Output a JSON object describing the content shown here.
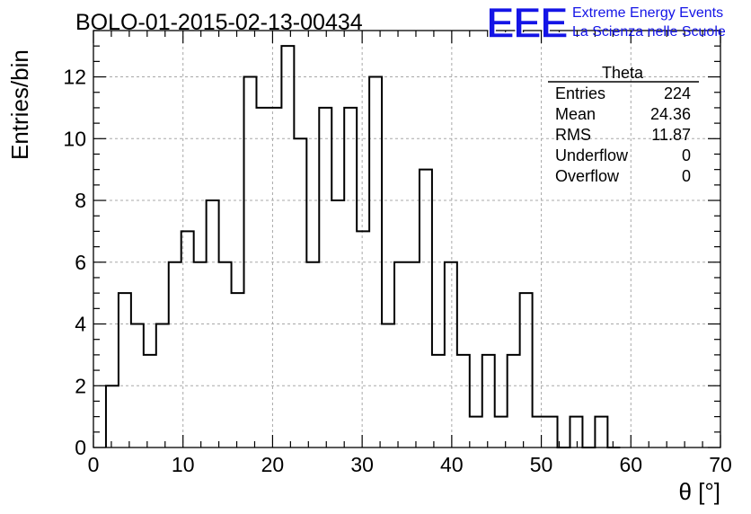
{
  "chart_data": {
    "type": "bar",
    "title": "BOLO-01-2015-02-13-00434",
    "xlabel": "θ [°]",
    "ylabel": "Entries/bin",
    "xlim": [
      0,
      70
    ],
    "ylim": [
      0,
      13.5
    ],
    "grid": true,
    "bin_width": 1.4,
    "bin_start": 1.4,
    "values": [
      2,
      5,
      4,
      3,
      4,
      6,
      7,
      6,
      8,
      6,
      5,
      12,
      11,
      11,
      13,
      10,
      6,
      11,
      8,
      11,
      7,
      12,
      4,
      6,
      6,
      9,
      3,
      6,
      3,
      1,
      3,
      1,
      3,
      5,
      1,
      1,
      0,
      1,
      0,
      1,
      0
    ],
    "x_ticks": [
      "0",
      "10",
      "20",
      "30",
      "40",
      "50",
      "60",
      "70"
    ],
    "y_ticks": [
      "0",
      "2",
      "4",
      "6",
      "8",
      "10",
      "12"
    ],
    "x_tick_values": [
      0,
      10,
      20,
      30,
      40,
      50,
      60,
      70
    ],
    "y_tick_values": [
      0,
      2,
      4,
      6,
      8,
      10,
      12
    ]
  },
  "stats_box": {
    "name": "Theta",
    "rows": [
      {
        "label": "Entries",
        "value": "224"
      },
      {
        "label": "Mean",
        "value": "24.36"
      },
      {
        "label": "RMS",
        "value": "11.87"
      },
      {
        "label": "Underflow",
        "value": "0"
      },
      {
        "label": "Overflow",
        "value": "0"
      }
    ]
  },
  "logo": {
    "text": "EEE",
    "line1": "Extreme Energy Events",
    "line2": "La Scienza nelle Scuole",
    "color": "#1414e6"
  }
}
